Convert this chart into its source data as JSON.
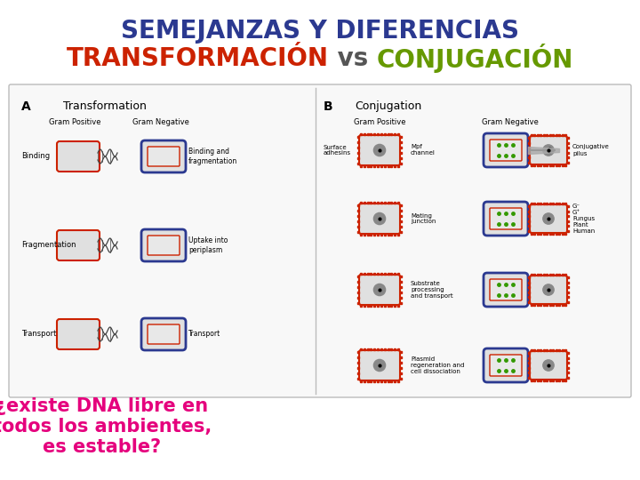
{
  "title_line1": "SEMEJANZAS Y DIFERENCIAS",
  "title_line1_color": "#2B3990",
  "title_line2_parts": [
    {
      "text": "TRANSFORMACIÓN",
      "color": "#CC2200"
    },
    {
      "text": " vs ",
      "color": "#555555"
    },
    {
      "text": "CONJUGACIÓN",
      "color": "#669900"
    }
  ],
  "title_fontsize": 20,
  "title2_fontsize": 20,
  "question_lines": [
    "¿existe DNA libre en",
    "todos los ambientes,",
    "es estable?"
  ],
  "question_color": "#E5007D",
  "question_fontsize": 15,
  "background_color": "#FFFFFF",
  "figsize": [
    7.2,
    5.4
  ],
  "dpi": 100
}
